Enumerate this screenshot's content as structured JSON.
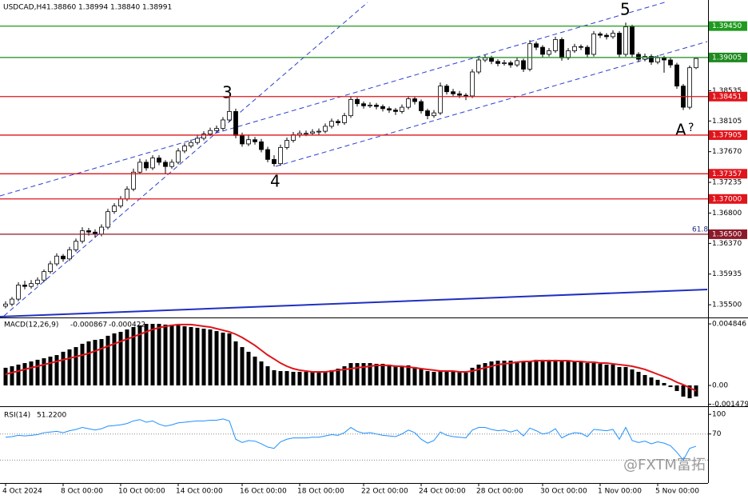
{
  "chart_data": {
    "type": "candlestick",
    "title": "USDCAD,H4",
    "last_bar_labels": [
      "1.38860",
      "1.38994",
      "1.38840",
      "1.38991"
    ],
    "categories": [
      "4 Oct 2024",
      null,
      null,
      null,
      null,
      null,
      null,
      null,
      null,
      "8 Oct 00:00",
      null,
      null,
      null,
      null,
      null,
      null,
      null,
      null,
      "10 Oct 00:00",
      null,
      null,
      null,
      null,
      null,
      null,
      null,
      null,
      "14 Oct 00:00",
      null,
      null,
      null,
      null,
      null,
      null,
      null,
      null,
      null,
      "16 Oct 00:00",
      null,
      null,
      null,
      null,
      null,
      null,
      null,
      null,
      "18 Oct 00:00",
      null,
      null,
      null,
      null,
      null,
      null,
      null,
      null,
      null,
      "22 Oct 00:00",
      null,
      null,
      null,
      null,
      null,
      null,
      null,
      null,
      "24 Oct 00:00",
      null,
      null,
      null,
      null,
      null,
      null,
      null,
      null,
      "28 Oct 00:00",
      null,
      null,
      null,
      null,
      null,
      null,
      null,
      null,
      null,
      "30 Oct 00:00",
      null,
      null,
      null,
      null,
      null,
      null,
      null,
      null,
      "1 Nov 00:00",
      null,
      null,
      null,
      null,
      null,
      null,
      null,
      null,
      "5 Nov 00:00",
      null,
      null,
      null,
      null,
      null,
      null
    ],
    "candles": [
      [
        1.3548,
        1.3555,
        1.3545,
        1.3551
      ],
      [
        1.3551,
        1.3561,
        1.3548,
        1.3558
      ],
      [
        1.3558,
        1.3582,
        1.3555,
        1.3578
      ],
      [
        1.3578,
        1.3584,
        1.3572,
        1.3576
      ],
      [
        1.3576,
        1.3585,
        1.3573,
        1.358
      ],
      [
        1.358,
        1.3589,
        1.3577,
        1.3585
      ],
      [
        1.3585,
        1.36,
        1.3582,
        1.3597
      ],
      [
        1.3597,
        1.3612,
        1.3594,
        1.3608
      ],
      [
        1.3608,
        1.3623,
        1.3605,
        1.3619
      ],
      [
        1.3619,
        1.3622,
        1.3611,
        1.3615
      ],
      [
        1.3615,
        1.3632,
        1.3612,
        1.3628
      ],
      [
        1.3628,
        1.3644,
        1.3625,
        1.364
      ],
      [
        1.364,
        1.366,
        1.3637,
        1.3655
      ],
      [
        1.3655,
        1.3659,
        1.3648,
        1.3653
      ],
      [
        1.3653,
        1.3657,
        1.3645,
        1.365
      ],
      [
        1.365,
        1.3664,
        1.3647,
        1.366
      ],
      [
        1.366,
        1.3686,
        1.3657,
        1.3682
      ],
      [
        1.3682,
        1.3694,
        1.3679,
        1.369
      ],
      [
        1.369,
        1.3704,
        1.3687,
        1.37
      ],
      [
        1.37,
        1.3718,
        1.3697,
        1.3714
      ],
      [
        1.3714,
        1.3743,
        1.3711,
        1.3738
      ],
      [
        1.3738,
        1.3757,
        1.3735,
        1.3752
      ],
      [
        1.3752,
        1.3756,
        1.374,
        1.3744
      ],
      [
        1.3744,
        1.3762,
        1.3741,
        1.3758
      ],
      [
        1.3758,
        1.3762,
        1.3748,
        1.3752
      ],
      [
        1.3752,
        1.3755,
        1.3735,
        1.3746
      ],
      [
        1.3746,
        1.3756,
        1.3743,
        1.3752
      ],
      [
        1.3752,
        1.3772,
        1.3749,
        1.3768
      ],
      [
        1.3768,
        1.3779,
        1.3765,
        1.3775
      ],
      [
        1.3775,
        1.3784,
        1.3772,
        1.378
      ],
      [
        1.378,
        1.379,
        1.3777,
        1.3786
      ],
      [
        1.3786,
        1.3796,
        1.3783,
        1.3792
      ],
      [
        1.3792,
        1.3801,
        1.3789,
        1.3797
      ],
      [
        1.3797,
        1.3804,
        1.3794,
        1.38
      ],
      [
        1.38,
        1.3816,
        1.3797,
        1.3812
      ],
      [
        1.3812,
        1.3846,
        1.3809,
        1.3824
      ],
      [
        1.3824,
        1.3828,
        1.3786,
        1.379
      ],
      [
        1.379,
        1.3794,
        1.3774,
        1.3778
      ],
      [
        1.3778,
        1.379,
        1.3775,
        1.3784
      ],
      [
        1.3784,
        1.3788,
        1.3777,
        1.3781
      ],
      [
        1.3781,
        1.3785,
        1.3766,
        1.377
      ],
      [
        1.377,
        1.3774,
        1.3752,
        1.3756
      ],
      [
        1.3756,
        1.3762,
        1.3746,
        1.375
      ],
      [
        1.375,
        1.3777,
        1.3747,
        1.3773
      ],
      [
        1.3773,
        1.3787,
        1.377,
        1.3783
      ],
      [
        1.3783,
        1.3795,
        1.378,
        1.3791
      ],
      [
        1.3791,
        1.3797,
        1.3787,
        1.3793
      ],
      [
        1.3793,
        1.3797,
        1.3789,
        1.3793
      ],
      [
        1.3793,
        1.3799,
        1.379,
        1.3795
      ],
      [
        1.3795,
        1.38,
        1.379,
        1.3796
      ],
      [
        1.3796,
        1.3807,
        1.3793,
        1.3803
      ],
      [
        1.3803,
        1.3814,
        1.38,
        1.381
      ],
      [
        1.381,
        1.3813,
        1.3804,
        1.3808
      ],
      [
        1.3808,
        1.3822,
        1.3805,
        1.3818
      ],
      [
        1.3818,
        1.3845,
        1.3815,
        1.3841
      ],
      [
        1.3841,
        1.3844,
        1.3831,
        1.3835
      ],
      [
        1.3835,
        1.3838,
        1.3828,
        1.3832
      ],
      [
        1.3832,
        1.3837,
        1.3829,
        1.3833
      ],
      [
        1.3833,
        1.3836,
        1.3827,
        1.3831
      ],
      [
        1.3831,
        1.3834,
        1.3824,
        1.3828
      ],
      [
        1.3828,
        1.3831,
        1.3822,
        1.3826
      ],
      [
        1.3826,
        1.3829,
        1.3819,
        1.3824
      ],
      [
        1.3824,
        1.3834,
        1.3821,
        1.383
      ],
      [
        1.383,
        1.3846,
        1.3827,
        1.3842
      ],
      [
        1.3842,
        1.3845,
        1.3834,
        1.3838
      ],
      [
        1.3838,
        1.3841,
        1.3821,
        1.3825
      ],
      [
        1.3825,
        1.3828,
        1.3813,
        1.3818
      ],
      [
        1.3818,
        1.3826,
        1.3815,
        1.3822
      ],
      [
        1.3822,
        1.3865,
        1.3819,
        1.386
      ],
      [
        1.386,
        1.3863,
        1.3848,
        1.3852
      ],
      [
        1.3852,
        1.3856,
        1.3845,
        1.3849
      ],
      [
        1.3849,
        1.3853,
        1.3843,
        1.3847
      ],
      [
        1.3847,
        1.385,
        1.384,
        1.3846
      ],
      [
        1.3846,
        1.3884,
        1.3843,
        1.388
      ],
      [
        1.388,
        1.3901,
        1.3877,
        1.3897
      ],
      [
        1.3897,
        1.3904,
        1.3894,
        1.39
      ],
      [
        1.39,
        1.3903,
        1.3891,
        1.3895
      ],
      [
        1.3895,
        1.3898,
        1.3888,
        1.3892
      ],
      [
        1.3892,
        1.3897,
        1.3889,
        1.3893
      ],
      [
        1.3893,
        1.3896,
        1.3886,
        1.389
      ],
      [
        1.389,
        1.39,
        1.3887,
        1.3896
      ],
      [
        1.3896,
        1.3899,
        1.388,
        1.3884
      ],
      [
        1.3884,
        1.3925,
        1.3881,
        1.392
      ],
      [
        1.392,
        1.3923,
        1.3911,
        1.3915
      ],
      [
        1.3915,
        1.3918,
        1.3901,
        1.3905
      ],
      [
        1.3905,
        1.3914,
        1.3902,
        1.391
      ],
      [
        1.391,
        1.393,
        1.3907,
        1.3926
      ],
      [
        1.3926,
        1.3929,
        1.3896,
        1.39
      ],
      [
        1.39,
        1.3914,
        1.3897,
        1.391
      ],
      [
        1.391,
        1.392,
        1.3907,
        1.3916
      ],
      [
        1.3916,
        1.3919,
        1.3911,
        1.3915
      ],
      [
        1.3915,
        1.3918,
        1.3901,
        1.3905
      ],
      [
        1.3905,
        1.3938,
        1.3902,
        1.3934
      ],
      [
        1.3934,
        1.3937,
        1.3928,
        1.3932
      ],
      [
        1.3932,
        1.3935,
        1.3926,
        1.393
      ],
      [
        1.393,
        1.3939,
        1.3927,
        1.3935
      ],
      [
        1.3935,
        1.3938,
        1.3901,
        1.3905
      ],
      [
        1.3905,
        1.395,
        1.3902,
        1.3944
      ],
      [
        1.3944,
        1.3947,
        1.3901,
        1.3905
      ],
      [
        1.3905,
        1.3908,
        1.3894,
        1.3898
      ],
      [
        1.3898,
        1.3906,
        1.3895,
        1.3902
      ],
      [
        1.3902,
        1.3905,
        1.389,
        1.3894
      ],
      [
        1.3894,
        1.3904,
        1.3891,
        1.39
      ],
      [
        1.39,
        1.3903,
        1.3879,
        1.3897
      ],
      [
        1.3897,
        1.39,
        1.3886,
        1.389
      ],
      [
        1.389,
        1.3893,
        1.3856,
        1.386
      ],
      [
        1.386,
        1.3863,
        1.3826,
        1.383
      ],
      [
        1.383,
        1.3889,
        1.3827,
        1.3886
      ],
      [
        1.3886,
        1.38994,
        1.3884,
        1.38991
      ]
    ],
    "up_color": "#ffffff",
    "down_color": "#000000",
    "outline_color": "#000000",
    "ylim": [
      1.3532,
      1.3982
    ],
    "yticks": [
      1.38535,
      1.38105,
      {
        "value": 1.3767,
        "label": "1.37670"
      },
      1.37235,
      {
        "value": 1.368,
        "label": "1.36800"
      },
      {
        "value": 1.3637,
        "label": "1.36370"
      },
      1.35935,
      {
        "value": 1.355,
        "label": "1.35500"
      }
    ],
    "levels": [
      {
        "value": 1.3945,
        "label": "1.39450",
        "color": "#1f9a1f"
      },
      {
        "value": 1.39005,
        "label": "1.39005",
        "color": "#1f8a1f"
      },
      {
        "value": 1.38451,
        "label": "1.38451",
        "color": "#e0141b"
      },
      {
        "value": 1.37905,
        "label": "1.37905",
        "color": "#e0141b"
      },
      {
        "value": 1.37357,
        "label": "1.37357",
        "color": "#e0141b"
      },
      {
        "value": 1.37,
        "label": "1.37000",
        "color": "#e0141b"
      },
      {
        "value": 1.365,
        "label": "1.36500",
        "color": "#8b1a2a"
      }
    ],
    "annotations": [
      "3",
      "4",
      "5",
      "A",
      "?",
      "61.8"
    ],
    "macd": {
      "name": "MACD(12,26,9)",
      "histogram": [
        0.00139,
        0.00151,
        0.00164,
        0.00176,
        0.00189,
        0.00202,
        0.00214,
        0.00227,
        0.00239,
        0.00265,
        0.00284,
        0.00302,
        0.00328,
        0.00347,
        0.00359,
        0.00365,
        0.00391,
        0.0041,
        0.00422,
        0.00441,
        0.0046,
        0.00473,
        0.00485,
        0.00485,
        0.00485,
        0.00479,
        0.00479,
        0.00473,
        0.00466,
        0.0046,
        0.00454,
        0.00447,
        0.00441,
        0.00428,
        0.00416,
        0.0041,
        0.00347,
        0.00302,
        0.00265,
        0.00227,
        0.00189,
        0.00151,
        0.0012,
        0.00113,
        0.00113,
        0.00107,
        0.00107,
        0.00107,
        0.00107,
        0.00107,
        0.00113,
        0.0012,
        0.00132,
        0.00151,
        0.00176,
        0.00176,
        0.00176,
        0.00176,
        0.0017,
        0.0017,
        0.00164,
        0.00158,
        0.00151,
        0.00158,
        0.00145,
        0.00132,
        0.00113,
        0.00107,
        0.0012,
        0.00113,
        0.00107,
        0.00107,
        0.00101,
        0.00139,
        0.00164,
        0.00176,
        0.00189,
        0.00195,
        0.00195,
        0.00195,
        0.00189,
        0.00189,
        0.00195,
        0.00202,
        0.00202,
        0.00202,
        0.00202,
        0.00195,
        0.00189,
        0.00189,
        0.00183,
        0.00176,
        0.00176,
        0.0017,
        0.00164,
        0.00164,
        0.00145,
        0.00145,
        0.00126,
        0.00107,
        0.00082,
        0.00063,
        0.00044,
        0.00019,
        -0.00013,
        -0.00044,
        -0.00088,
        -0.00101,
        -0.000867
      ],
      "signal": [
        0.00088,
        0.00101,
        0.00113,
        0.00126,
        0.00139,
        0.00151,
        0.00164,
        0.00176,
        0.00189,
        0.00202,
        0.00214,
        0.00227,
        0.00239,
        0.00252,
        0.00271,
        0.0029,
        0.00309,
        0.00328,
        0.00347,
        0.00365,
        0.00384,
        0.00403,
        0.00422,
        0.00441,
        0.00454,
        0.00466,
        0.00473,
        0.00479,
        0.00479,
        0.00479,
        0.00473,
        0.00466,
        0.0046,
        0.00447,
        0.00435,
        0.00422,
        0.00403,
        0.00378,
        0.00347,
        0.00315,
        0.00277,
        0.00239,
        0.00208,
        0.00176,
        0.00151,
        0.00132,
        0.0012,
        0.00113,
        0.00107,
        0.00107,
        0.00107,
        0.00113,
        0.0012,
        0.00126,
        0.00132,
        0.00139,
        0.00145,
        0.00151,
        0.00158,
        0.00158,
        0.00158,
        0.00151,
        0.00151,
        0.00145,
        0.00139,
        0.00132,
        0.00126,
        0.0012,
        0.00113,
        0.00113,
        0.00113,
        0.00107,
        0.00107,
        0.00113,
        0.00126,
        0.00139,
        0.00151,
        0.00164,
        0.0017,
        0.00176,
        0.00183,
        0.00189,
        0.00189,
        0.00195,
        0.00195,
        0.00195,
        0.00195,
        0.00195,
        0.00195,
        0.00189,
        0.00189,
        0.00183,
        0.00183,
        0.00176,
        0.00176,
        0.0017,
        0.00164,
        0.00158,
        0.00151,
        0.00139,
        0.00126,
        0.00107,
        0.00088,
        0.00069,
        0.0005,
        0.00025,
        6e-05,
        -0.00019,
        -0.000422
      ],
      "histogram_color": "#000000",
      "signal_color": "#e0141b",
      "ylim": [
        -0.00164,
        0.00529
      ],
      "yticks": [
        0.004846,
        {
          "value": 0,
          "label": "0.00"
        },
        -0.001479
      ]
    },
    "rsi": {
      "name": "RSI(14)",
      "value_label": "51.2200",
      "values": [
        65,
        66,
        68,
        67,
        68,
        69,
        72,
        73,
        74,
        72,
        75,
        77,
        80,
        78,
        76,
        78,
        82,
        83,
        84,
        86,
        90,
        92,
        88,
        90,
        85,
        82,
        84,
        87,
        88,
        89,
        90,
        90,
        91,
        91,
        93,
        90,
        62,
        57,
        60,
        59,
        55,
        50,
        48,
        58,
        62,
        64,
        64,
        64,
        65,
        65,
        67,
        69,
        68,
        72,
        80,
        74,
        71,
        72,
        70,
        68,
        67,
        66,
        70,
        76,
        72,
        62,
        56,
        60,
        73,
        68,
        66,
        65,
        64,
        76,
        80,
        80,
        77,
        75,
        76,
        73,
        76,
        67,
        79,
        75,
        70,
        72,
        78,
        64,
        69,
        72,
        71,
        66,
        77,
        76,
        75,
        77,
        62,
        80,
        60,
        57,
        59,
        55,
        58,
        56,
        52,
        42,
        30,
        48,
        51.22
      ],
      "color": "#1e90ff",
      "ylim": [
        -5,
        110
      ],
      "yticks": [
        100,
        70
      ],
      "levels": [
        70,
        30
      ]
    },
    "watermark": "@FXTM富拓"
  }
}
